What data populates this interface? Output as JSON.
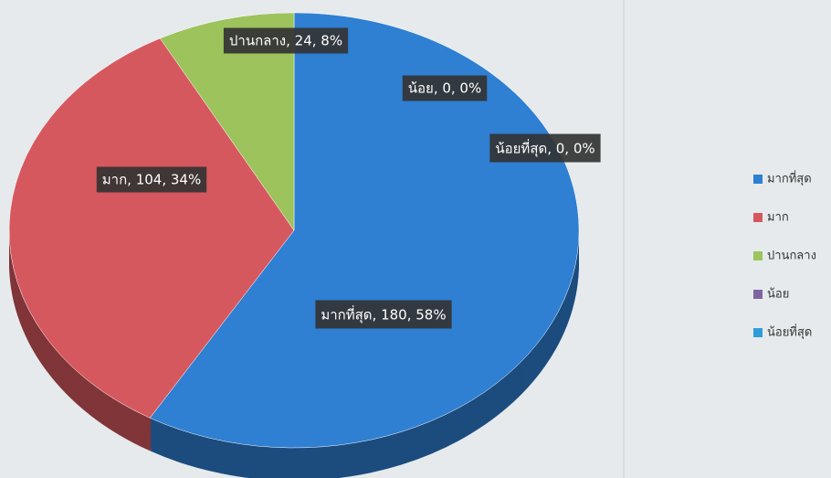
{
  "chart_data": {
    "type": "pie",
    "categories": [
      "มากที่สุด",
      "มาก",
      "ปานกลาง",
      "น้อย",
      "น้อยที่สุด"
    ],
    "values": [
      180,
      104,
      24,
      0,
      0
    ],
    "value_labels": [
      "มากที่สุด, 180, 58%",
      "มาก, 104, 34%",
      "ปานกลาง, 24, 8%",
      "น้อย, 0, 0%",
      "น้อยที่สุด, 0, 0%"
    ],
    "colors": [
      "#2f7fd2",
      "#d6585f",
      "#9cc35c",
      "#8064a2",
      "#2f9ed8"
    ],
    "legend": "right"
  }
}
